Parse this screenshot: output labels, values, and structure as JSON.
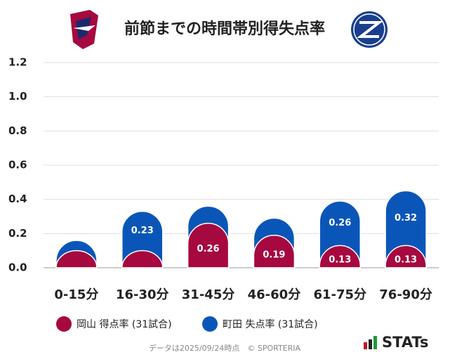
{
  "chart_data": {
    "type": "stacked_bar",
    "title": "前節までの時間帯別得失点率",
    "categories": [
      "0-15分",
      "16-30分",
      "31-45分",
      "46-60分",
      "61-75分",
      "76-90分"
    ],
    "series": [
      {
        "name": "岡山 得点率 (31試合)",
        "color": "#a5093f",
        "values": [
          0.1,
          0.1,
          0.26,
          0.19,
          0.13,
          0.13
        ]
      },
      {
        "name": "町田 失点率 (31試合)",
        "color": "#0a56b8",
        "values": [
          0.06,
          0.23,
          0.1,
          0.1,
          0.26,
          0.32
        ]
      }
    ],
    "ylim": [
      0,
      1.2
    ],
    "yticks": [
      {
        "value": 0,
        "label": "0.0"
      },
      0.2,
      0.4,
      0.6,
      0.8,
      {
        "value": 1,
        "label": "1.0"
      },
      1.2
    ],
    "grid": true,
    "footer": "データは2025/09/24時点　© SPORTERIA",
    "brand": "STATs"
  }
}
